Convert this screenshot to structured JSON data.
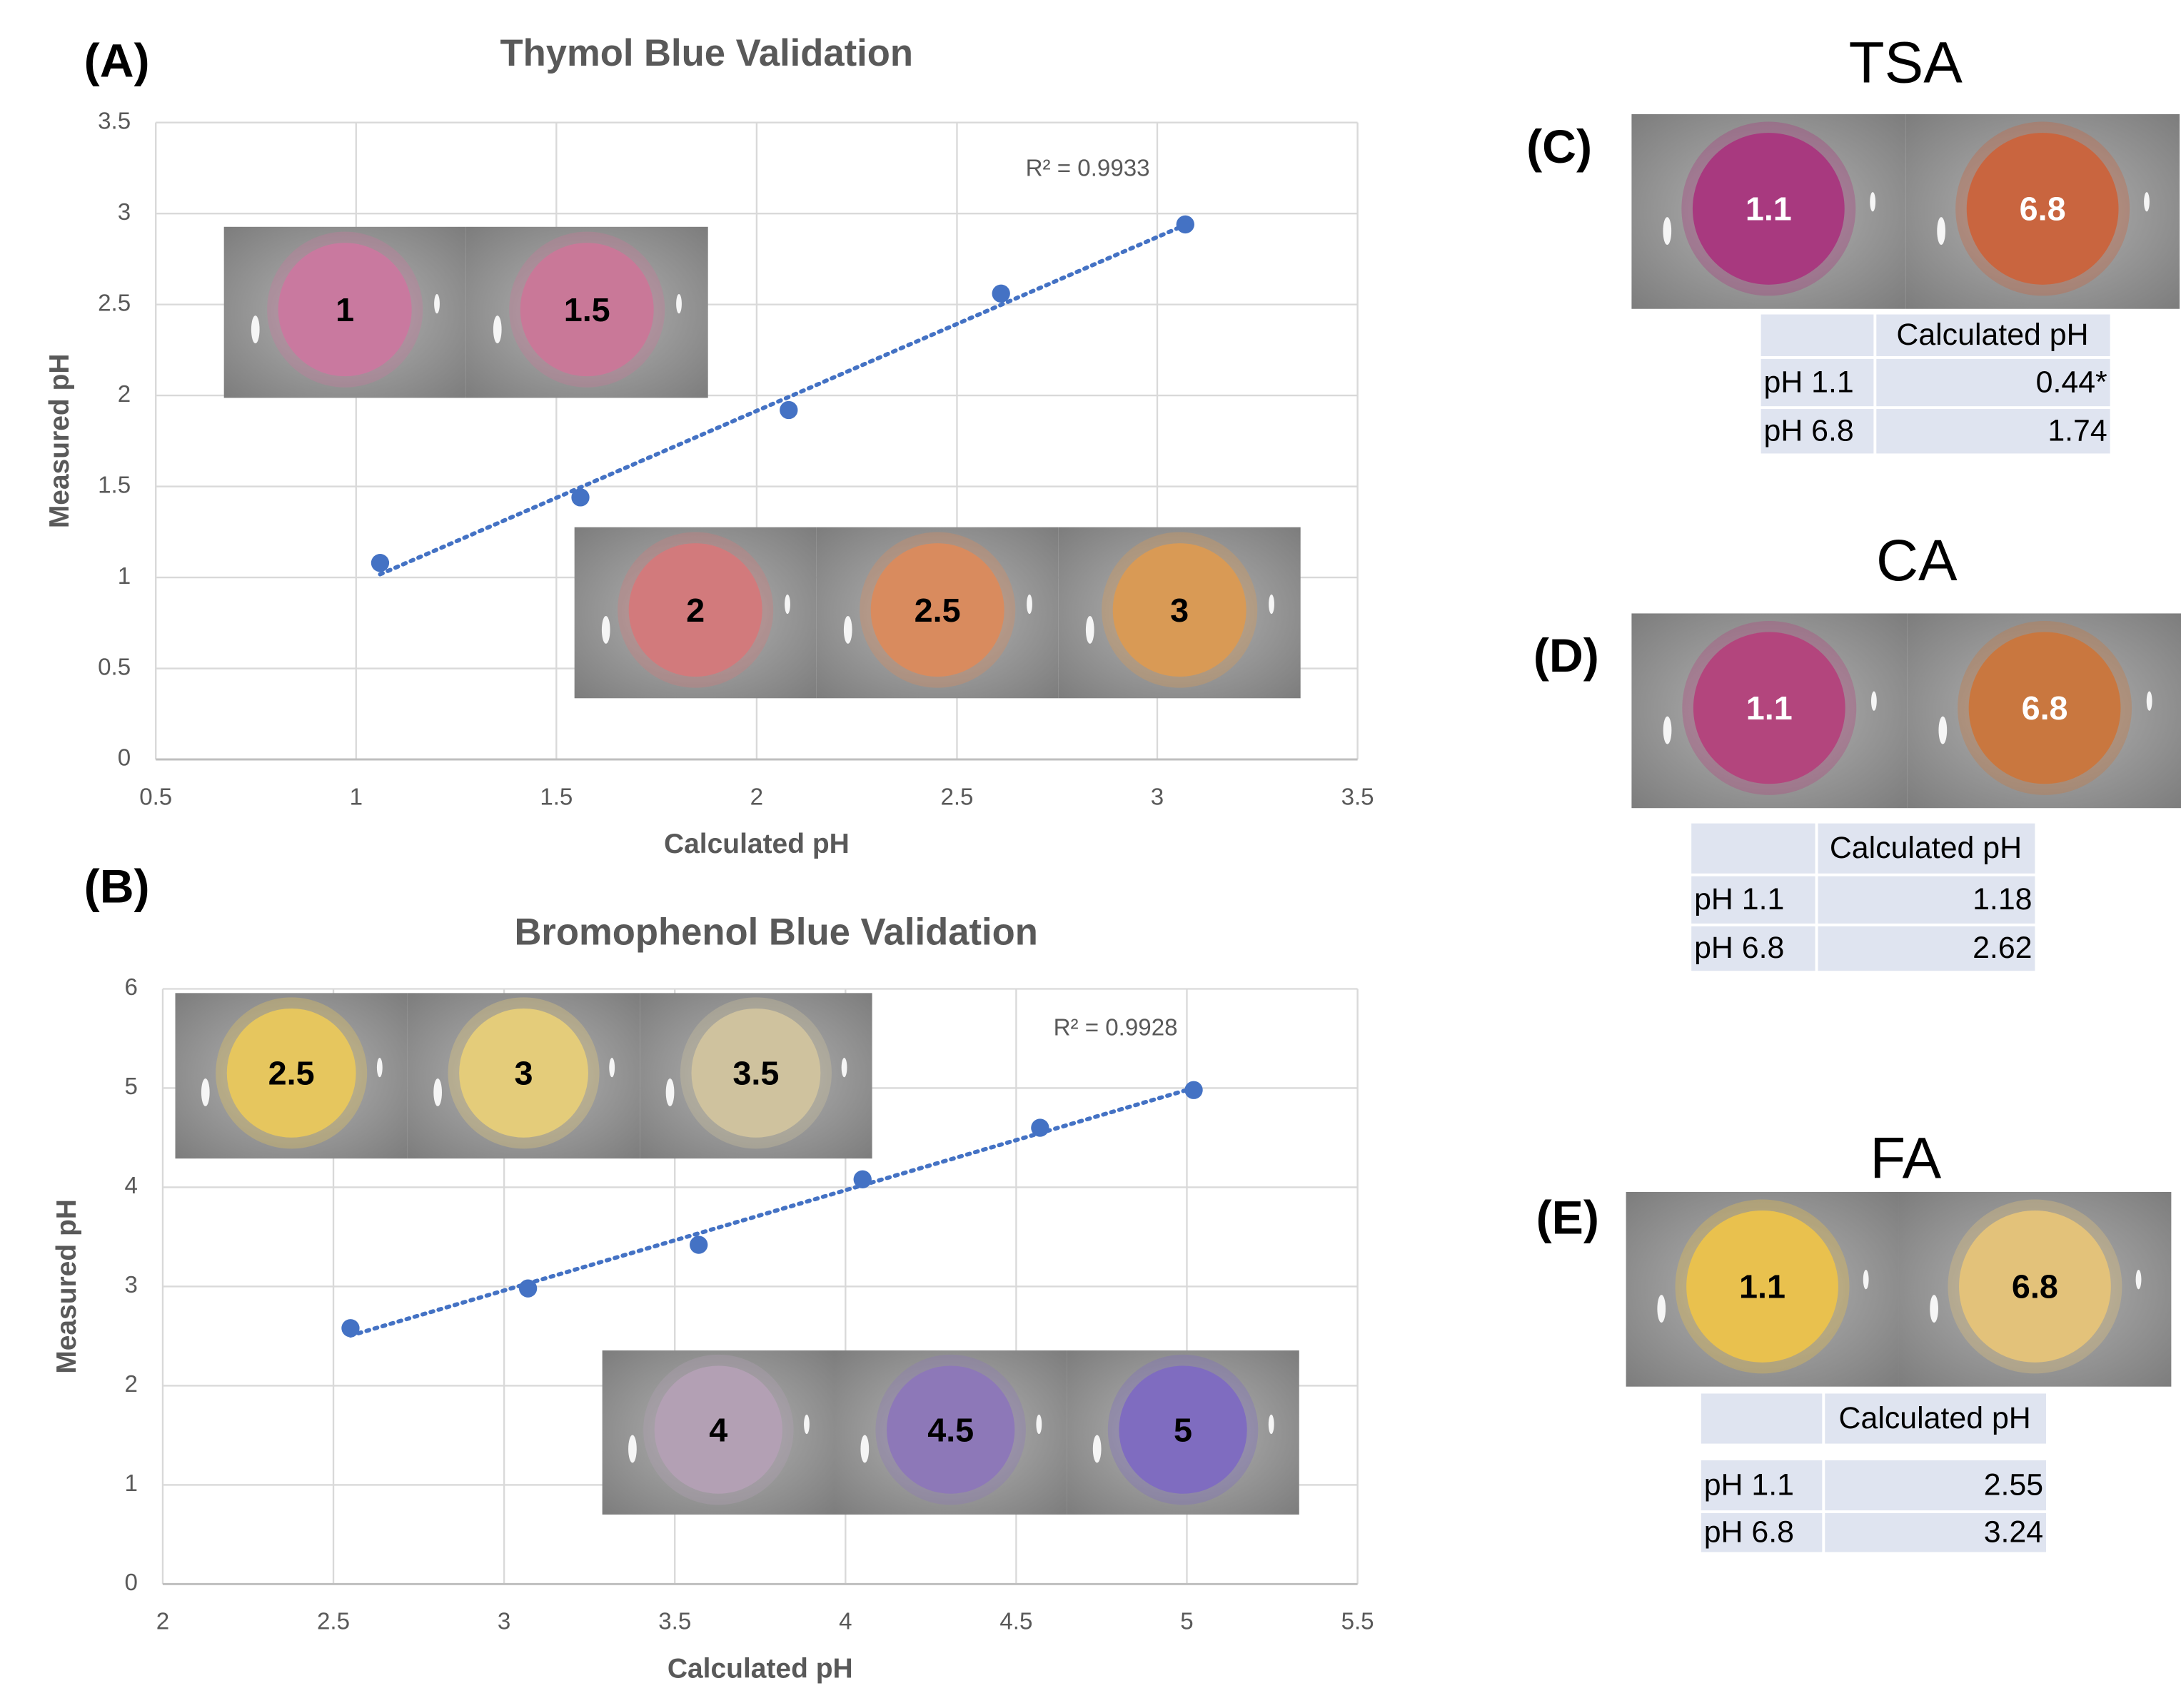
{
  "chart_data": [
    {
      "type": "scatter",
      "panel_label": "(A)",
      "title": "Thymol Blue Validation",
      "x_label": "Calculated pH",
      "y_label": "Measured pH",
      "annotation": "R² = 0.9933",
      "x": [
        1.06,
        1.56,
        2.08,
        2.61,
        3.07
      ],
      "values": [
        1.08,
        1.44,
        1.92,
        2.56,
        2.94
      ],
      "color": "#4472c4",
      "trendline": true,
      "grid": true,
      "xlim": [
        0.5,
        3.5
      ],
      "xticks": [
        0.5,
        1,
        1.5,
        2,
        2.5,
        3,
        3.5
      ],
      "ylim": [
        0,
        3.5
      ],
      "yticks": [
        0,
        0.5,
        1,
        1.5,
        2,
        2.5,
        3,
        3.5
      ],
      "image_groups": [
        [
          {
            "label": "1",
            "color": "#c9799f"
          },
          {
            "label": "1.5",
            "color": "#c97898"
          }
        ],
        [
          {
            "label": "2",
            "color": "#d27a7c"
          },
          {
            "label": "2.5",
            "color": "#d98b5e"
          },
          {
            "label": "3",
            "color": "#d99a55"
          }
        ]
      ]
    },
    {
      "type": "scatter",
      "panel_label": "(B)",
      "title": "Bromophenol Blue Validation",
      "x_label": "Calculated pH",
      "y_label": "Measured pH",
      "annotation": "R² = 0.9928",
      "x": [
        2.55,
        3.07,
        3.57,
        4.05,
        4.57,
        5.02
      ],
      "values": [
        2.58,
        2.98,
        3.42,
        4.08,
        4.6,
        4.98
      ],
      "color": "#4472c4",
      "trendline": true,
      "grid": true,
      "xlim": [
        2,
        5.5
      ],
      "xticks": [
        2,
        2.5,
        3,
        3.5,
        4,
        4.5,
        5,
        5.5
      ],
      "ylim": [
        0,
        6
      ],
      "yticks": [
        0,
        1,
        2,
        3,
        4,
        5,
        6
      ],
      "image_groups": [
        [
          {
            "label": "2.5",
            "color": "#e6c65e"
          },
          {
            "label": "3",
            "color": "#e4cc7a"
          },
          {
            "label": "3.5",
            "color": "#cfc29e"
          }
        ],
        [
          {
            "label": "4",
            "color": "#b3a0b4"
          },
          {
            "label": "4.5",
            "color": "#8d78b8"
          },
          {
            "label": "5",
            "color": "#7f6cc0"
          }
        ]
      ]
    }
  ],
  "panels": [
    {
      "panel_label": "(C)",
      "title": "TSA",
      "images": [
        {
          "label": "1.1",
          "color": "#a8397f"
        },
        {
          "label": "6.8",
          "color": "#c9653f"
        }
      ],
      "label_color": "#ffffff",
      "table": {
        "header": "Calculated pH",
        "rows": [
          [
            "pH 1.1",
            "0.44*"
          ],
          [
            "pH 6.8",
            "1.74"
          ]
        ]
      }
    },
    {
      "panel_label": "(D)",
      "title": "CA",
      "images": [
        {
          "label": "1.1",
          "color": "#b3457d"
        },
        {
          "label": "6.8",
          "color": "#c9773f"
        }
      ],
      "label_color": "#ffffff",
      "table": {
        "header": "Calculated pH",
        "rows": [
          [
            "pH 1.1",
            "1.18"
          ],
          [
            "pH 6.8",
            "2.62"
          ]
        ]
      }
    },
    {
      "panel_label": "(E)",
      "title": "FA",
      "images": [
        {
          "label": "1.1",
          "color": "#e9c14e"
        },
        {
          "label": "6.8",
          "color": "#e3c27a"
        }
      ],
      "label_color": "#000000",
      "table": {
        "header": "Calculated pH",
        "rows": [
          [
            "pH 1.1",
            "2.55"
          ],
          [
            "pH 6.8",
            "3.24"
          ]
        ]
      }
    }
  ]
}
